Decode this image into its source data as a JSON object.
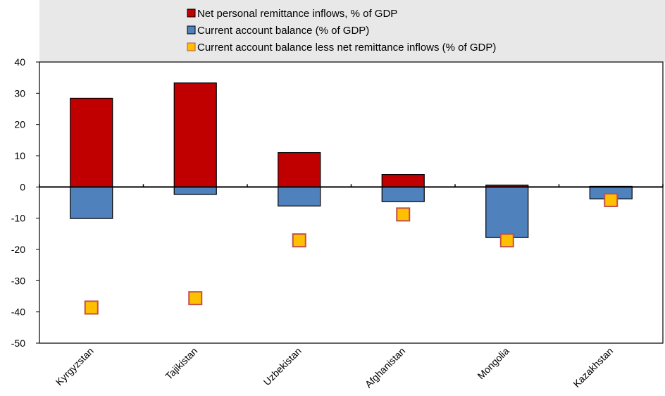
{
  "chart_data": {
    "type": "bar",
    "title": "",
    "xlabel": "",
    "ylabel": "",
    "categories": [
      "Kyrgyzstan",
      "Tajikistan",
      "Uzbekistan",
      "Afghanistan",
      "Mongolia",
      "Kazakhstan"
    ],
    "ylim": [
      -50,
      40
    ],
    "yticks": [
      40,
      30,
      20,
      10,
      0,
      -10,
      -20,
      -30,
      -40,
      -50
    ],
    "legend_position": "top",
    "grid": false,
    "series": [
      {
        "name": "Net personal remittance inflows, % of GDP",
        "kind": "bar",
        "color": "#C00000",
        "values": [
          28.4,
          33.3,
          11.0,
          4.0,
          0.6,
          0.2
        ]
      },
      {
        "name": "Current account balance (% of GDP)",
        "kind": "bar",
        "color": "#4F81BD",
        "values": [
          -10.1,
          -2.4,
          -6.1,
          -4.7,
          -16.2,
          -3.8
        ]
      },
      {
        "name": "Current account balance less net remittance inflows (% of GDP)",
        "kind": "marker",
        "color": "#FFC000",
        "edge_color": "#C0504D",
        "values": [
          -38.6,
          -35.6,
          -17.1,
          -8.8,
          -17.1,
          -4.2
        ]
      }
    ]
  }
}
